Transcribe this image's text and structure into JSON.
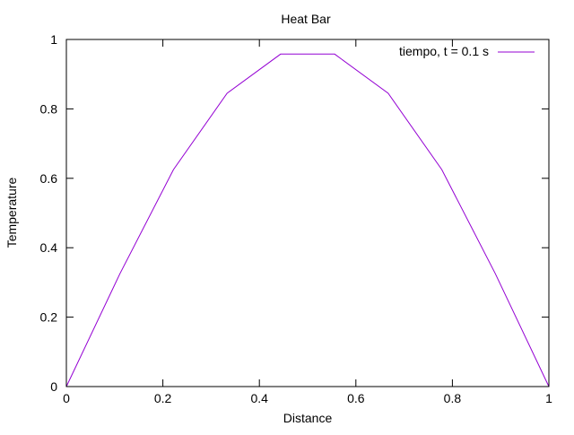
{
  "chart_data": {
    "type": "line",
    "title": "Heat Bar",
    "xlabel": "Distance",
    "ylabel": "Temperature",
    "xlim": [
      0,
      1
    ],
    "ylim": [
      0,
      1
    ],
    "x_ticks": [
      "0",
      "0.2",
      "0.4",
      "0.6",
      "0.8",
      "1"
    ],
    "y_ticks": [
      "0",
      "0.2",
      "0.4",
      "0.6",
      "0.8",
      "1"
    ],
    "grid": false,
    "legend_position": "top-right",
    "series": [
      {
        "name": "tiempo, t = 0.1 s",
        "color": "#9400d3",
        "x": [
          0,
          0.111,
          0.222,
          0.333,
          0.444,
          0.556,
          0.667,
          0.778,
          0.889,
          1.0
        ],
        "y": [
          0,
          0.325,
          0.625,
          0.845,
          0.958,
          0.958,
          0.845,
          0.625,
          0.325,
          0
        ]
      }
    ]
  }
}
